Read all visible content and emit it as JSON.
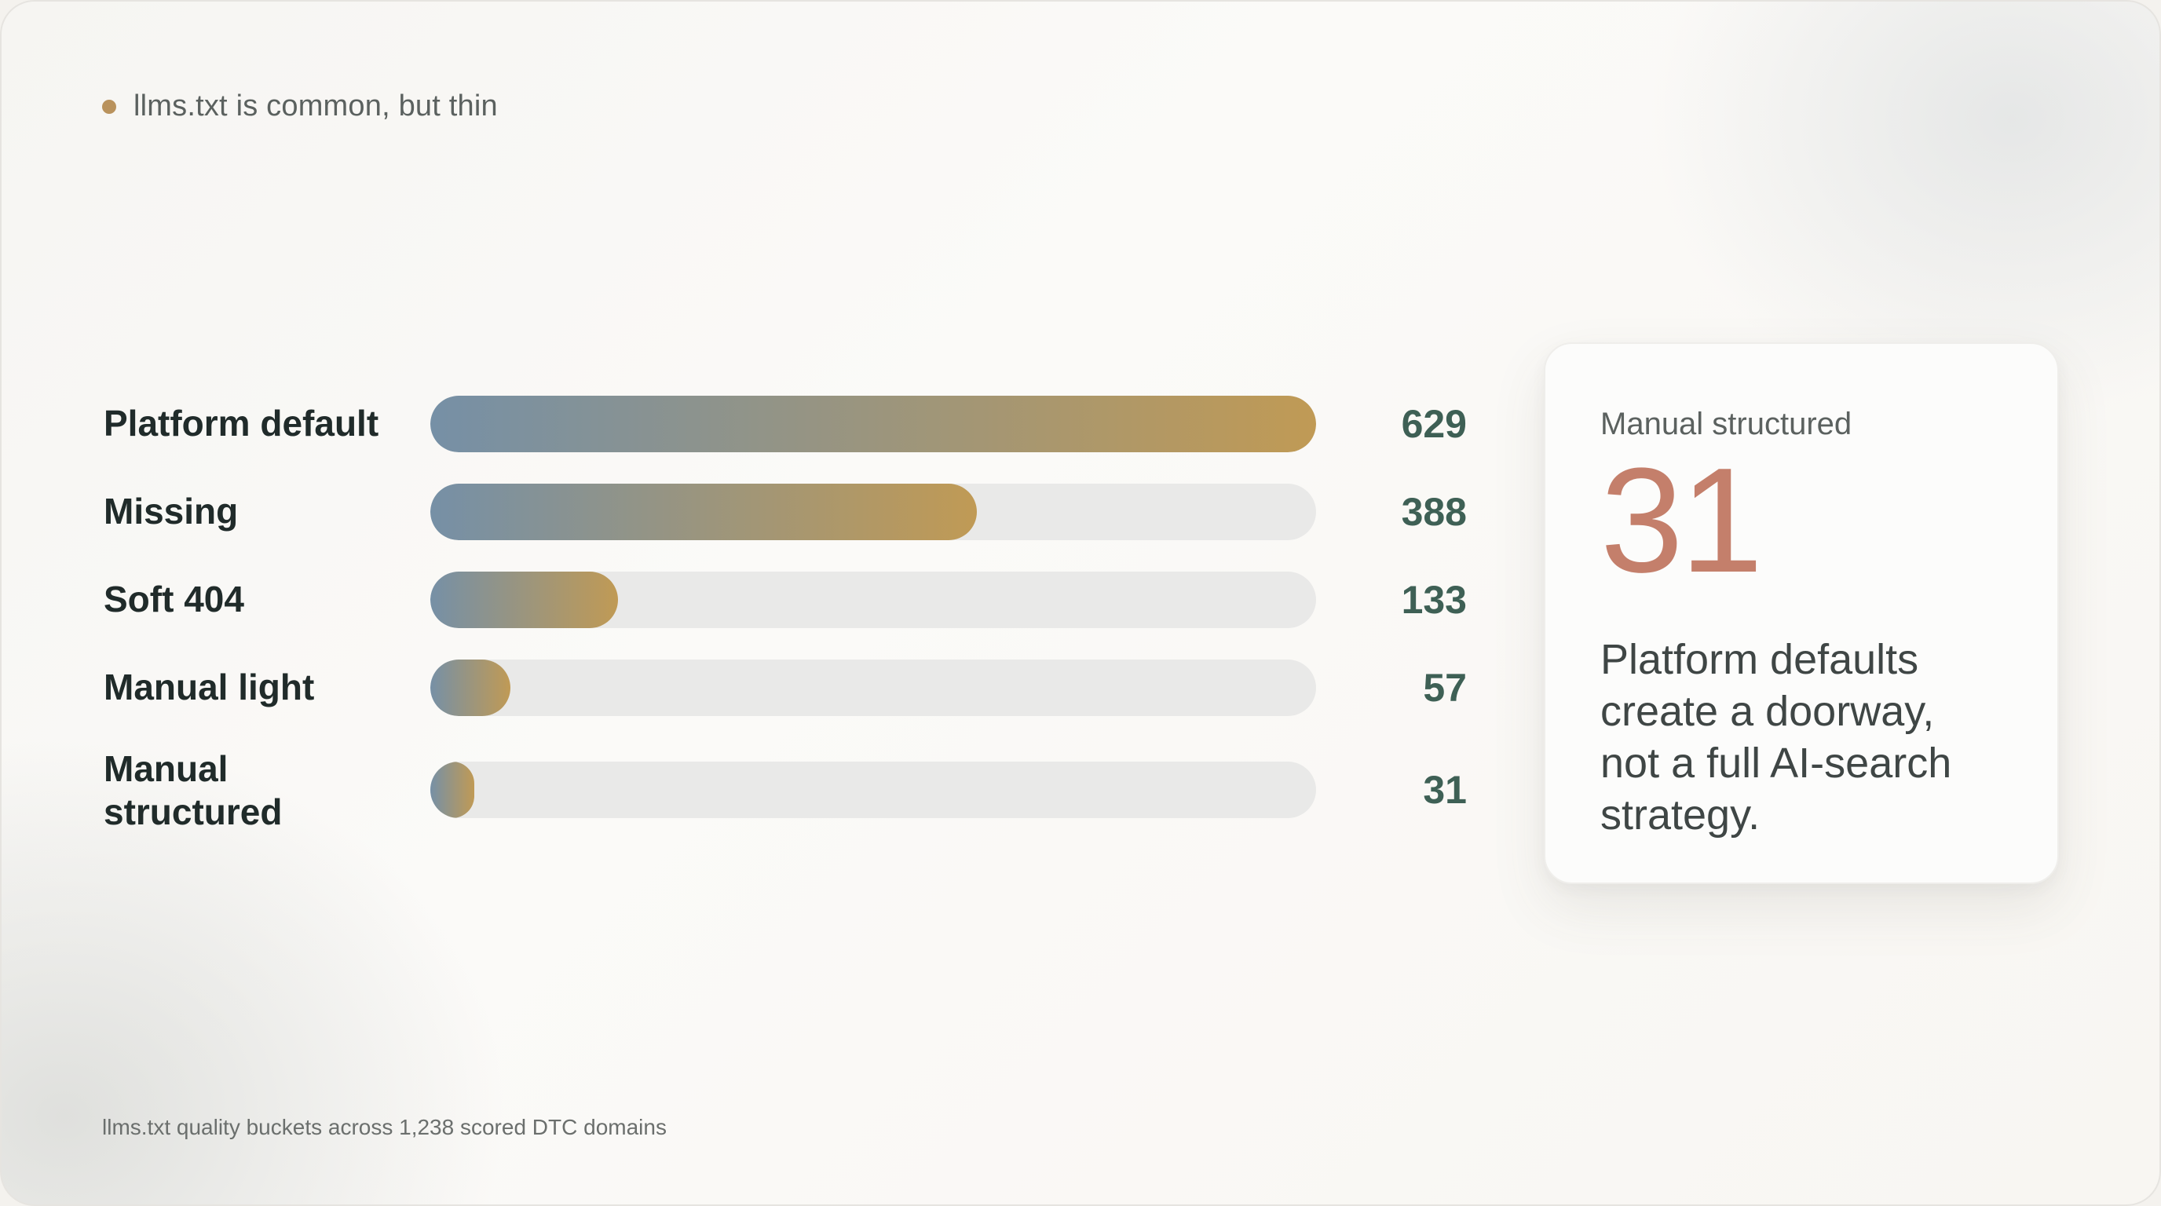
{
  "header": {
    "title": "llms.txt is common, but thin"
  },
  "chart_data": {
    "type": "bar",
    "orientation": "horizontal",
    "categories": [
      "Platform default",
      "Missing",
      "Soft 404",
      "Manual light",
      "Manual structured"
    ],
    "values": [
      629,
      388,
      133,
      57,
      31
    ],
    "xlim": [
      0,
      629
    ],
    "grid": false,
    "legend": "none"
  },
  "callout": {
    "label": "Manual structured",
    "value": "31",
    "text": "Platform defaults create a doorway, not a full AI-search strategy."
  },
  "footer": {
    "note": "llms.txt quality buckets across 1,238 scored DTC domains"
  },
  "colors": {
    "accent_dot": "#b9925c",
    "bar_start": "#7690a6",
    "bar_end": "#c09a55",
    "value_text": "#3e6055",
    "callout_number": "#c47f6b"
  }
}
